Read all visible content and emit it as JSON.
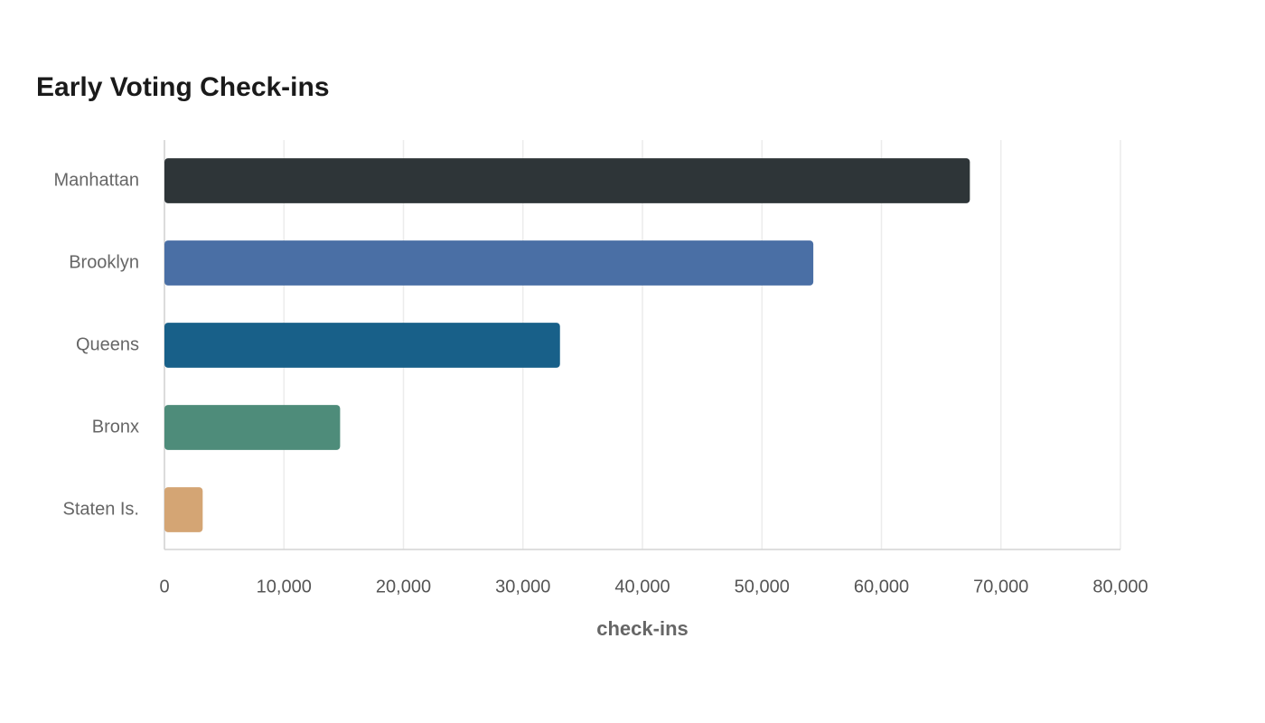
{
  "chart_data": {
    "type": "bar",
    "orientation": "horizontal",
    "title": "Early Voting Check-ins",
    "x_label": "check-ins",
    "categories": [
      "Manhattan",
      "Brooklyn",
      "Queens",
      "Bronx",
      "Staten Is."
    ],
    "values": [
      67400,
      54300,
      33100,
      14700,
      3200
    ],
    "colors": [
      "#2e3538",
      "#4a6fa5",
      "#186089",
      "#4e8c7a",
      "#d4a574"
    ],
    "xlim": [
      0,
      80000
    ],
    "xticks": [
      0,
      {
        "value": 10000,
        "label": "10,000"
      },
      {
        "value": 20000,
        "label": "20,000"
      },
      {
        "value": 30000,
        "label": "30,000"
      },
      {
        "value": 40000,
        "label": "40,000"
      },
      {
        "value": 50000,
        "label": "50,000"
      },
      {
        "value": 60000,
        "label": "60,000"
      },
      {
        "value": 70000,
        "label": "70,000"
      },
      {
        "value": 80000,
        "label": "80,000"
      }
    ],
    "grid": true
  }
}
